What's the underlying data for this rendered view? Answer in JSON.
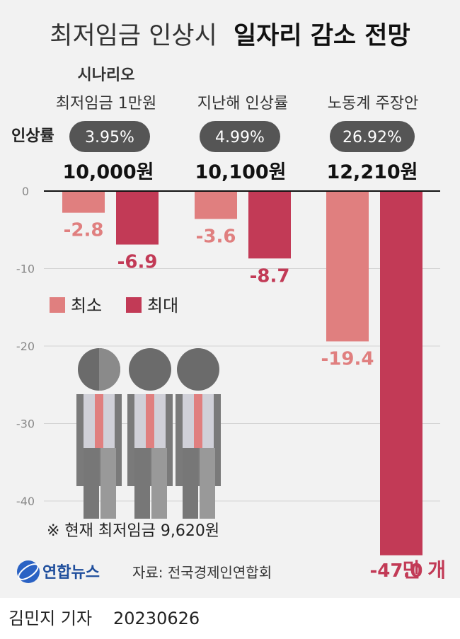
{
  "title": {
    "light": "최저임금 인상시",
    "bold": "일자리 감소 전망"
  },
  "scenario_header": "시나리오",
  "rate_label": "인상률",
  "scenarios": [
    {
      "name": "최저임금 1만원",
      "rate": "3.95%",
      "wage": "10,000원"
    },
    {
      "name": "지난해 인상률",
      "rate": "4.99%",
      "wage": "10,100원"
    },
    {
      "name": "노동계 주장안",
      "rate": "26.92%",
      "wage": "12,210원"
    }
  ],
  "legend": {
    "min": "최소",
    "max": "최대"
  },
  "note": "※ 현재 최저임금 9,620원",
  "source": "자료: 전국경제인연합회",
  "logo": "연합뉴스",
  "footer": {
    "author": "김민지 기자",
    "date": "20230626"
  },
  "colors": {
    "min": "#e07f7f",
    "max": "#c23a56",
    "pill": "#555555"
  },
  "chart_data": {
    "type": "bar",
    "categories": [
      "최저임금 1만원",
      "지난해 인상률",
      "노동계 주장안"
    ],
    "series": [
      {
        "name": "최소",
        "values": [
          -2.8,
          -3.6,
          -19.4
        ],
        "labels": [
          "-2.8",
          "-3.6",
          "-19.4"
        ]
      },
      {
        "name": "최대",
        "values": [
          -6.9,
          -8.7,
          -47.0
        ],
        "labels": [
          "-6.9",
          "-8.7",
          "-47.0"
        ]
      }
    ],
    "unit": "만 개",
    "yticks": [
      "0",
      "-10",
      "-20",
      "-30",
      "-40"
    ],
    "ylim": [
      -47,
      0
    ],
    "grid": true,
    "legend_position": "left-middle"
  }
}
